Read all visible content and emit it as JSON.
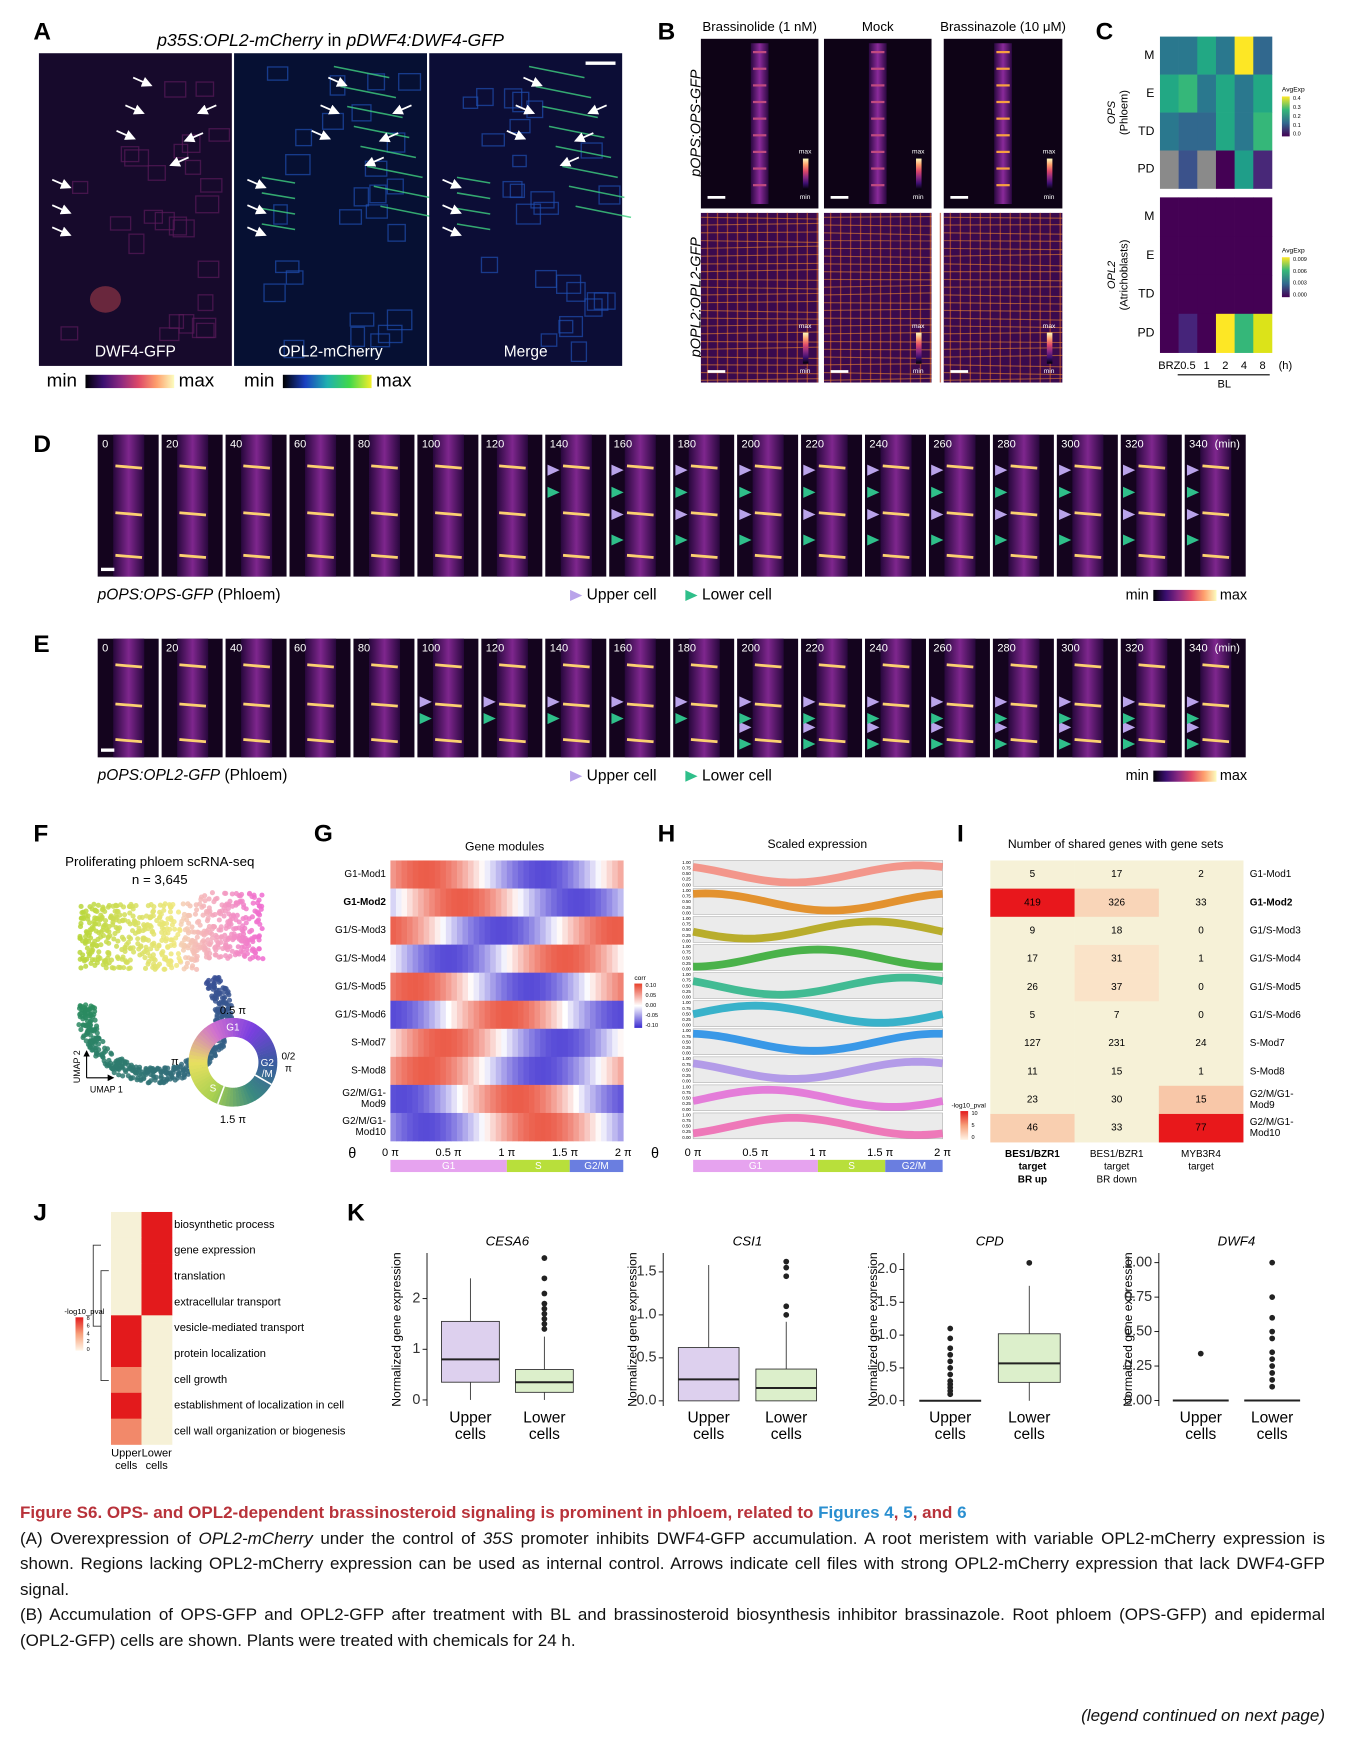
{
  "panel_labels": [
    "A",
    "B",
    "C",
    "D",
    "E",
    "F",
    "G",
    "H",
    "I",
    "J",
    "K"
  ],
  "panel_a": {
    "title": [
      {
        "text": "p35S:OPL2-mCherry",
        "italic": true
      },
      {
        "text": " in "
      },
      {
        "text": "pDWF4:DWF4-GFP",
        "italic": true
      }
    ],
    "images": [
      "DWF4-GFP",
      "OPL2-mCherry",
      "Merge"
    ],
    "scales": [
      {
        "min": "min",
        "max": "max"
      },
      {
        "min": "min",
        "max": "max"
      }
    ]
  },
  "panel_b": {
    "columns": [
      "Brassinolide (1 nM)",
      "Mock",
      "Brassinazole (10 μM)"
    ],
    "rows": [
      "pOPS:OPS-GFP",
      "pOPL2:OPL2-GFP"
    ],
    "lut": {
      "max": "max",
      "min": "min"
    }
  },
  "panel_c": {
    "rows": [
      "M",
      "E",
      "TD",
      "PD"
    ],
    "columns": [
      "BRZ",
      "0.5",
      "1",
      "2",
      "4",
      "8"
    ],
    "unit": "(h)",
    "bl": "BL",
    "groups": [
      {
        "name": "OPS",
        "tissue": "(Phloem)",
        "legend_title": "AvgExp",
        "legend_ticks": [
          "0.4",
          "0.3",
          "0.2",
          "0.1",
          "0.0"
        ],
        "cell_colors": [
          [
            "#2a788e",
            "#2a788e",
            "#22a884",
            "#2a788e",
            "#fde725",
            "#31688e"
          ],
          [
            "#22a884",
            "#35b779",
            "#2a788e",
            "#22a884",
            "#2a788e",
            "#22a884"
          ],
          [
            "#2a788e",
            "#31688e",
            "#31688e",
            "#22a884",
            "#2a788e",
            "#35b779"
          ],
          [
            "#8a8a8a",
            "#3b528b",
            "#8a8a8a",
            "#440154",
            "#1f9e89",
            "#482878"
          ]
        ]
      },
      {
        "name": "OPL2",
        "tissue": "(Atrichoblasts)",
        "legend_title": "AvgExp",
        "legend_ticks": [
          "0.009",
          "0.006",
          "0.003",
          "0.000"
        ],
        "cell_colors": [
          [
            "#440154",
            "#440154",
            "#440154",
            "#440154",
            "#440154",
            "#440154"
          ],
          [
            "#440154",
            "#440154",
            "#440154",
            "#440154",
            "#440154",
            "#440154"
          ],
          [
            "#440154",
            "#440154",
            "#440154",
            "#440154",
            "#440154",
            "#440154"
          ],
          [
            "#440154",
            "#46247a",
            "#440154",
            "#fde725",
            "#35b779",
            "#dce319"
          ]
        ]
      }
    ]
  },
  "panel_d": {
    "times": [
      "0",
      "20",
      "40",
      "60",
      "80",
      "100",
      "120",
      "140",
      "160",
      "180",
      "200",
      "220",
      "240",
      "260",
      "280",
      "300",
      "320",
      "340"
    ],
    "unit": "(min)",
    "line": [
      {
        "text": "pOPS:OPS-GFP",
        "italic": true
      },
      {
        "text": " (Phloem)"
      }
    ],
    "upper": "Upper cell",
    "lower": "Lower cell",
    "min": "min",
    "max": "max"
  },
  "panel_e": {
    "times": [
      "0",
      "20",
      "40",
      "60",
      "80",
      "100",
      "120",
      "140",
      "160",
      "180",
      "200",
      "220",
      "240",
      "260",
      "280",
      "300",
      "320",
      "340"
    ],
    "unit": "(min)",
    "line": [
      {
        "text": "pOPS:OPL2-GFP",
        "italic": true
      },
      {
        "text": " (Phloem)"
      }
    ],
    "upper": "Upper cell",
    "lower": "Lower cell",
    "min": "min",
    "max": "max"
  },
  "panel_f": {
    "title": "Proliferating phloem scRNA-seq",
    "n": "n = 3,645",
    "x_axis": "UMAP 1",
    "y_axis": "UMAP 2",
    "wheel": {
      "top": "0.5 π",
      "left": "π",
      "bottom": "1.5 π",
      "right": [
        "0/2",
        "π"
      ],
      "g1": "G1",
      "s": "S",
      "g2m": [
        "G2",
        "/M"
      ]
    }
  },
  "panel_g": {
    "title": "Gene modules",
    "rows": [
      [
        "G1-Mod1"
      ],
      [
        "G1-Mod2"
      ],
      [
        "G1/S-Mod3"
      ],
      [
        "G1/S-Mod4"
      ],
      [
        "G1/S-Mod5"
      ],
      [
        "G1/S-Mod6"
      ],
      [
        "S-Mod7"
      ],
      [
        "S-Mod8"
      ],
      [
        "G2/M/G1-",
        "Mod9"
      ],
      [
        "G2/M/G1-",
        "Mod10"
      ]
    ],
    "highlight_row": 1,
    "legend_title": "corr",
    "legend_ticks": [
      "0.10",
      "0.05",
      "0.00",
      "-0.05",
      "-0.10"
    ],
    "theta": "θ",
    "xticks": [
      "0 π",
      "0.5 π",
      "1 π",
      "1.5 π",
      "2 π"
    ],
    "phases": [
      "G1",
      "S",
      "G2/M"
    ]
  },
  "panel_h": {
    "title": "Scaled expression",
    "yticks": [
      "1.00",
      "0.75",
      "0.50",
      "0.25",
      "0.00"
    ],
    "colors": [
      "#f4877a",
      "#e2820e",
      "#b0a20b",
      "#2ea82e",
      "#24b384",
      "#1aa8c4",
      "#1a8ae6",
      "#a98de8",
      "#e36ad6",
      "#ef64b0"
    ],
    "theta": "θ",
    "xticks": [
      "0 π",
      "0.5 π",
      "1 π",
      "1.5 π",
      "2 π"
    ],
    "phases": [
      "G1",
      "S",
      "G2/M"
    ]
  },
  "panel_i": {
    "title": "Number of shared genes with gene sets",
    "columns": [
      [
        "BES1/BZR1",
        "target",
        "BR up"
      ],
      [
        "BES1/BZR1",
        "target",
        "BR down"
      ],
      [
        "MYB3R4",
        "target"
      ]
    ],
    "bold_column": 0,
    "rows": [
      [
        "G1-Mod1"
      ],
      [
        "G1-Mod2"
      ],
      [
        "G1/S-Mod3"
      ],
      [
        "G1/S-Mod4"
      ],
      [
        "G1/S-Mod5"
      ],
      [
        "G1/S-Mod6"
      ],
      [
        "S-Mod7"
      ],
      [
        "S-Mod8"
      ],
      [
        "G2/M/G1-",
        "Mod9"
      ],
      [
        "G2/M/G1-",
        "Mod10"
      ]
    ],
    "highlight_row": 1,
    "values": [
      [
        5,
        17,
        2
      ],
      [
        419,
        326,
        33
      ],
      [
        9,
        18,
        0
      ],
      [
        17,
        31,
        1
      ],
      [
        26,
        37,
        0
      ],
      [
        5,
        7,
        0
      ],
      [
        127,
        231,
        24
      ],
      [
        11,
        15,
        1
      ],
      [
        23,
        30,
        15
      ],
      [
        46,
        33,
        77
      ]
    ],
    "cell_colors": [
      [
        "#f6f1d7",
        "#f6f1d7",
        "#f6f1d7"
      ],
      [
        "#e8171c",
        "#f9d5b8",
        "#f6f1d7"
      ],
      [
        "#f6f1d7",
        "#f6f1d7",
        "#f6f1d7"
      ],
      [
        "#f6f1d7",
        "#fae3c8",
        "#f6f1d7"
      ],
      [
        "#f6f1d7",
        "#fae3c8",
        "#f6f1d7"
      ],
      [
        "#f6f1d7",
        "#f6f1d7",
        "#f6f1d7"
      ],
      [
        "#f6f1d7",
        "#f6f1d7",
        "#f6f1d7"
      ],
      [
        "#f6f1d7",
        "#f6f1d7",
        "#f6f1d7"
      ],
      [
        "#f6f1d7",
        "#f6f1d7",
        "#f8c7a8"
      ],
      [
        "#f9cfb0",
        "#f6f1d7",
        "#e8181b"
      ]
    ],
    "legend_title": "-log10_pval",
    "legend_ticks": [
      "10",
      "5",
      "0"
    ]
  },
  "panel_j": {
    "terms": [
      "biosynthetic process",
      "gene expression",
      "translation",
      "extracellular transport",
      "vesicle-mediated transport",
      "protein localization",
      "cell growth",
      "establishment of localization in cell",
      "cell wall organization or biogenesis"
    ],
    "columns": [
      [
        "Upper",
        "cells"
      ],
      [
        "Lower",
        "cells"
      ]
    ],
    "cell_colors": [
      [
        "#f6f1d7",
        "#e31a1c"
      ],
      [
        "#f6f1d7",
        "#e31a1c"
      ],
      [
        "#f6f1d7",
        "#e31a1c"
      ],
      [
        "#f6f1d7",
        "#e31a1c"
      ],
      [
        "#e31a1c",
        "#f6f1d7"
      ],
      [
        "#e31a1c",
        "#f6f1d7"
      ],
      [
        "#f2896a",
        "#f6f1d7"
      ],
      [
        "#e31a1c",
        "#f6f1d7"
      ],
      [
        "#f2896a",
        "#f6f1d7"
      ]
    ],
    "legend_title": "-log10_pval",
    "legend_ticks": [
      "8",
      "6",
      "4",
      "2",
      "0"
    ]
  },
  "panel_k": {
    "y_label": "Normalized gene expression",
    "plots": [
      {
        "gene": "CESA6",
        "ylim": [
          -0.12,
          2.9
        ],
        "yticks": [
          0,
          1,
          2
        ],
        "groups": [
          {
            "label": [
              "Upper",
              "cells"
            ],
            "color": "#ddd0ee",
            "lo": 0,
            "q1": 0.35,
            "median": 0.8,
            "q3": 1.55,
            "hi": 2.4,
            "outliers": []
          },
          {
            "label": [
              "Lower",
              "cells"
            ],
            "color": "#dcefcb",
            "lo": 0,
            "q1": 0.15,
            "median": 0.35,
            "q3": 0.6,
            "hi": 1.25,
            "outliers": [
              1.4,
              1.5,
              1.6,
              1.7,
              1.8,
              1.9,
              2.1,
              2.4,
              2.8
            ]
          }
        ]
      },
      {
        "gene": "CSI1",
        "ylim": [
          -0.06,
          1.72
        ],
        "yticks": [
          {
            "value": 0,
            "label": "0.0"
          },
          0.5,
          {
            "value": 1,
            "label": "1.0"
          },
          1.5
        ],
        "groups": [
          {
            "label": [
              "Upper",
              "cells"
            ],
            "color": "#ddd0ee",
            "lo": 0,
            "q1": 0,
            "median": 0.25,
            "q3": 0.62,
            "hi": 1.58,
            "outliers": []
          },
          {
            "label": [
              "Lower",
              "cells"
            ],
            "color": "#dcefcb",
            "lo": 0,
            "q1": 0,
            "median": 0.15,
            "q3": 0.37,
            "hi": 0.92,
            "outliers": [
              1.0,
              1.1,
              1.45,
              1.55,
              1.62
            ]
          }
        ]
      },
      {
        "gene": "CPD",
        "ylim": [
          -0.08,
          2.25
        ],
        "yticks": [
          {
            "value": 0,
            "label": "0.0"
          },
          0.5,
          {
            "value": 1,
            "label": "1.0"
          },
          1.5,
          {
            "value": 2,
            "label": "2.0"
          }
        ],
        "groups": [
          {
            "label": [
              "Upper",
              "cells"
            ],
            "color": "#ddd0ee",
            "lo": 0,
            "q1": 0,
            "median": 0,
            "q3": 0,
            "hi": 0,
            "outliers": [
              0.1,
              0.15,
              0.2,
              0.25,
              0.3,
              0.4,
              0.5,
              0.6,
              0.7,
              0.8,
              0.95,
              1.1
            ]
          },
          {
            "label": [
              "Lower",
              "cells"
            ],
            "color": "#dcefcb",
            "lo": 0,
            "q1": 0.28,
            "median": 0.57,
            "q3": 1.02,
            "hi": 1.75,
            "outliers": [
              2.1
            ]
          }
        ]
      },
      {
        "gene": "DWF4",
        "ylim": [
          -0.04,
          1.07
        ],
        "yticks": [
          {
            "value": 0,
            "label": "0.00"
          },
          0.25,
          {
            "value": 0.5,
            "label": "0.50"
          },
          0.75,
          {
            "value": 1,
            "label": "1.00"
          }
        ],
        "groups": [
          {
            "label": [
              "Upper",
              "cells"
            ],
            "color": "#ddd0ee",
            "lo": 0,
            "q1": 0,
            "median": 0,
            "q3": 0,
            "hi": 0,
            "outliers": [
              0.34
            ]
          },
          {
            "label": [
              "Lower",
              "cells"
            ],
            "color": "#dcefcb",
            "lo": 0,
            "q1": 0,
            "median": 0,
            "q3": 0,
            "hi": 0,
            "outliers": [
              0.1,
              0.15,
              0.2,
              0.25,
              0.3,
              0.35,
              0.45,
              0.5,
              0.6,
              0.75,
              1.0
            ]
          }
        ]
      }
    ]
  },
  "caption": {
    "title": [
      {
        "text": "Figure S6. OPS- and OPL2-dependent brassinosteroid signaling is prominent in phloem, related to "
      },
      {
        "text": "Figures 4",
        "link": true
      },
      {
        "text": ", "
      },
      {
        "text": "5",
        "link": true
      },
      {
        "text": ", and "
      },
      {
        "text": "6",
        "link": true
      }
    ],
    "paragraphs": [
      [
        {
          "text": "(A) Overexpression of "
        },
        {
          "text": "OPL2-mCherry",
          "italic": true
        },
        {
          "text": " under the control of "
        },
        {
          "text": "35S",
          "italic": true
        },
        {
          "text": " promoter inhibits DWF4-GFP accumulation. A root meristem with variable OPL2-mCherry expression is shown. Regions lacking OPL2-mCherry expression can be used as internal control. Arrows indicate cell files with strong OPL2-mCherry expression that lack DWF4-GFP signal."
        }
      ],
      [
        {
          "text": "(B) Accumulation of OPS-GFP and OPL2-GFP after treatment with BL and brassinosteroid biosynthesis inhibitor brassinazole. Root phloem (OPS-GFP) and epidermal (OPL2-GFP) cells are shown. Plants were treated with chemicals for 24 h."
        }
      ]
    ]
  },
  "footer": "(legend continued on next page)"
}
